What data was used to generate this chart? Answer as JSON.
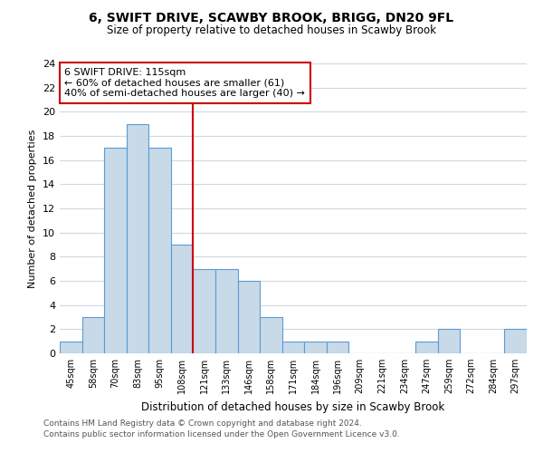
{
  "title": "6, SWIFT DRIVE, SCAWBY BROOK, BRIGG, DN20 9FL",
  "subtitle": "Size of property relative to detached houses in Scawby Brook",
  "xlabel": "Distribution of detached houses by size in Scawby Brook",
  "ylabel": "Number of detached properties",
  "bin_labels": [
    "45sqm",
    "58sqm",
    "70sqm",
    "83sqm",
    "95sqm",
    "108sqm",
    "121sqm",
    "133sqm",
    "146sqm",
    "158sqm",
    "171sqm",
    "184sqm",
    "196sqm",
    "209sqm",
    "221sqm",
    "234sqm",
    "247sqm",
    "259sqm",
    "272sqm",
    "284sqm",
    "297sqm"
  ],
  "bar_heights": [
    1,
    3,
    17,
    19,
    17,
    9,
    7,
    7,
    6,
    3,
    1,
    1,
    1,
    0,
    0,
    0,
    1,
    2,
    0,
    0,
    2
  ],
  "bar_color": "#c8d9e8",
  "bar_edge_color": "#5b9bd5",
  "vline_x": 5.5,
  "vline_color": "#cc0000",
  "annotation_text": "6 SWIFT DRIVE: 115sqm\n← 60% of detached houses are smaller (61)\n40% of semi-detached houses are larger (40) →",
  "annotation_box_color": "#ffffff",
  "annotation_box_edge_color": "#cc0000",
  "ylim": [
    0,
    24
  ],
  "yticks": [
    0,
    2,
    4,
    6,
    8,
    10,
    12,
    14,
    16,
    18,
    20,
    22,
    24
  ],
  "footer_line1": "Contains HM Land Registry data © Crown copyright and database right 2024.",
  "footer_line2": "Contains public sector information licensed under the Open Government Licence v3.0.",
  "bg_color": "#ffffff",
  "grid_color": "#d0d8e0"
}
